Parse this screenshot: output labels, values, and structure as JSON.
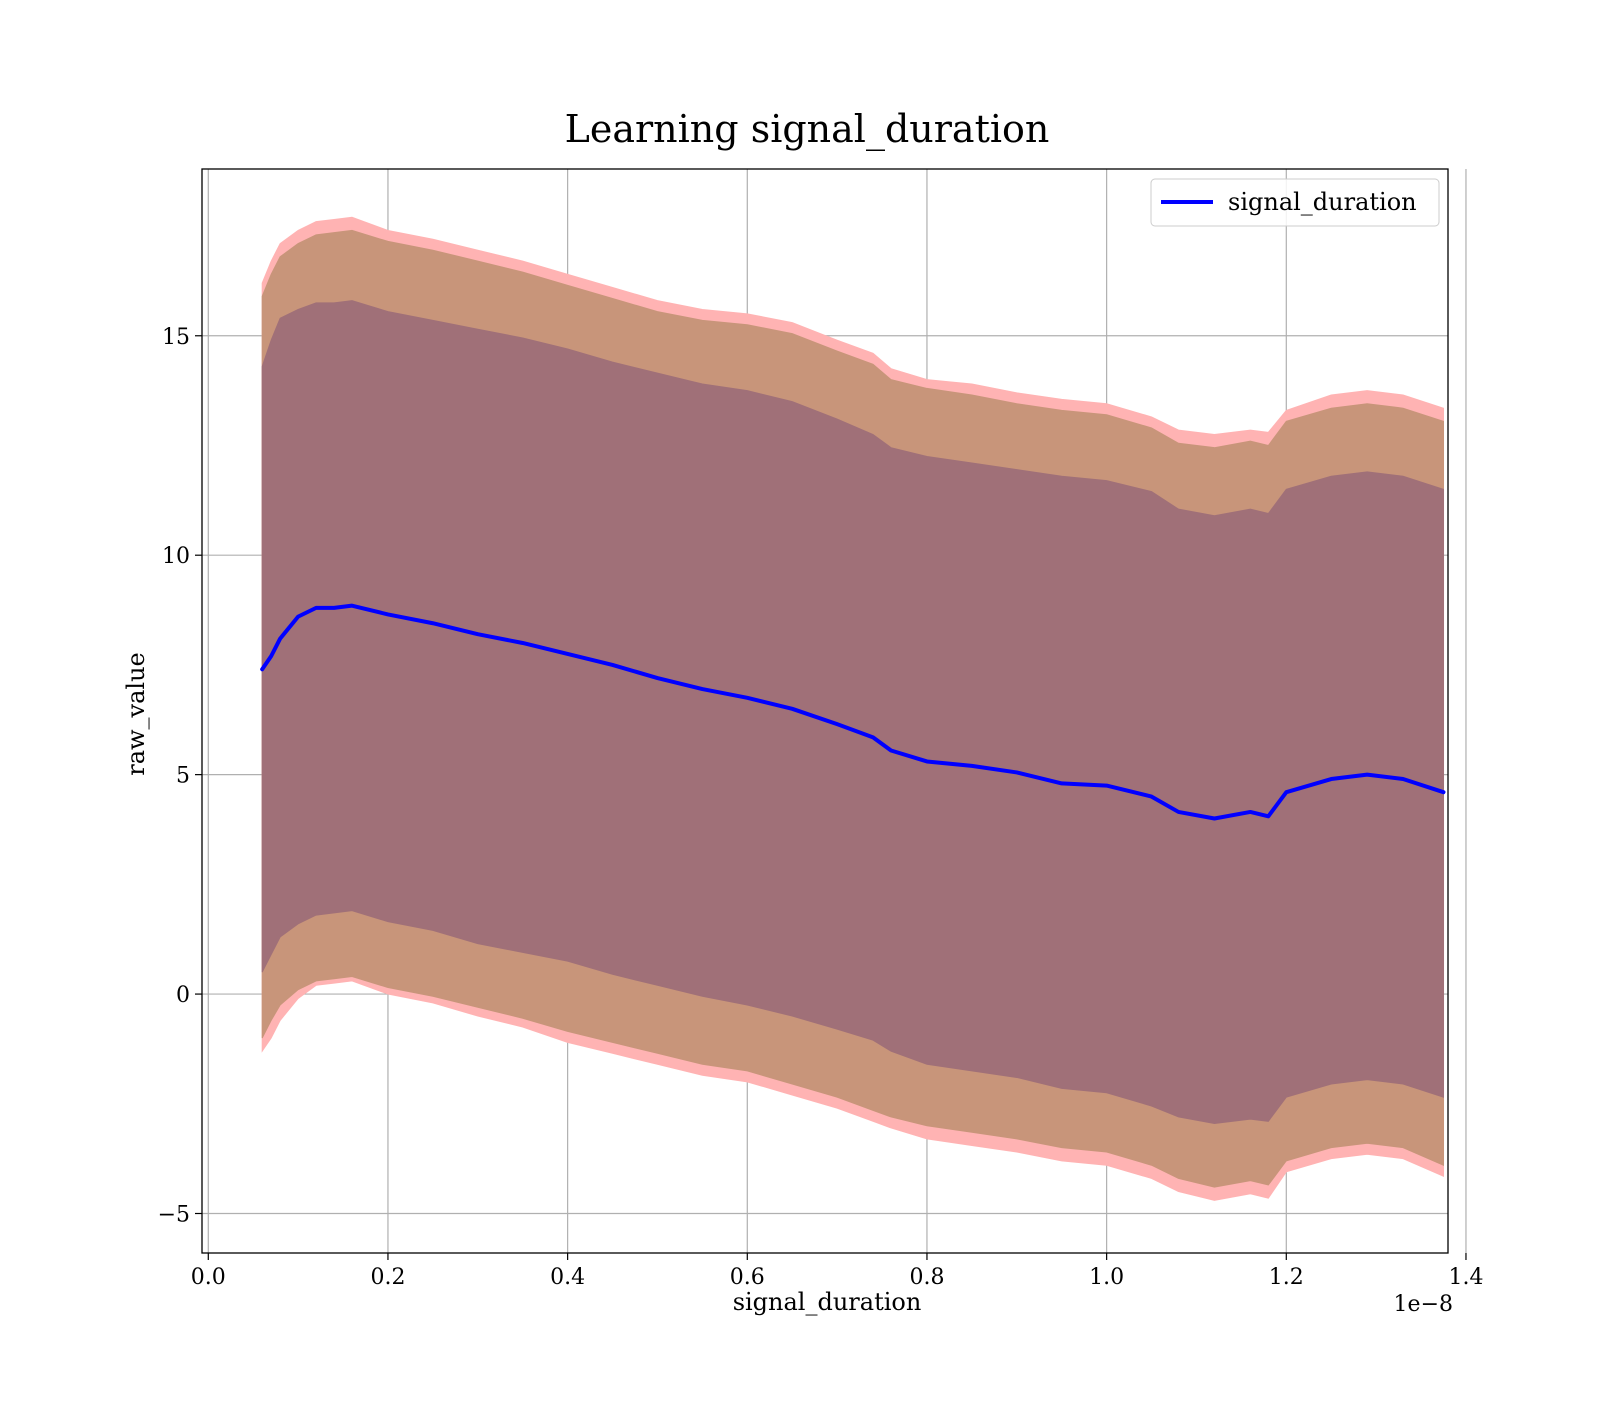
{
  "chart_data": {
    "type": "area",
    "title": "Learning signal_duration",
    "xlabel": "signal_duration",
    "ylabel": "raw_value",
    "x_offset_label": "1e−8",
    "xlim": [
      -0.007,
      1.38
    ],
    "ylim": [
      -5.9,
      18.8
    ],
    "x_ticks": [
      0.0,
      0.2,
      0.4,
      0.6,
      0.8,
      1.0,
      1.2,
      1.4
    ],
    "x_tick_labels": [
      "0.0",
      "0.2",
      "0.4",
      "0.6",
      "0.8",
      "1.0",
      "1.2",
      "1.4"
    ],
    "y_ticks": [
      -5,
      0,
      5,
      10,
      15
    ],
    "y_tick_labels": [
      "−5",
      "0",
      "5",
      "10",
      "15"
    ],
    "grid": true,
    "legend_position": "upper right",
    "colors": {
      "line": "#0000ff",
      "outer_band": "#ffb3b3",
      "middle_band": "#c8957a",
      "inner_band": "#a07078"
    },
    "series": [
      {
        "name": "signal_duration",
        "x": [
          0.06,
          0.07,
          0.08,
          0.1,
          0.12,
          0.14,
          0.16,
          0.2,
          0.25,
          0.3,
          0.35,
          0.4,
          0.45,
          0.5,
          0.55,
          0.6,
          0.65,
          0.7,
          0.74,
          0.76,
          0.8,
          0.85,
          0.9,
          0.95,
          1.0,
          1.05,
          1.08,
          1.12,
          1.16,
          1.18,
          1.2,
          1.25,
          1.29,
          1.33,
          1.375
        ],
        "values": [
          7.4,
          7.7,
          8.1,
          8.6,
          8.8,
          8.8,
          8.85,
          8.65,
          8.45,
          8.2,
          8.0,
          7.75,
          7.5,
          7.2,
          6.95,
          6.75,
          6.5,
          6.15,
          5.85,
          5.55,
          5.3,
          5.2,
          5.05,
          4.8,
          4.75,
          4.5,
          4.15,
          4.0,
          4.15,
          4.05,
          4.6,
          4.9,
          5.0,
          4.9,
          4.6
        ]
      }
    ],
    "bands": [
      {
        "layer": "outer",
        "lower": [
          -1.3,
          -1.0,
          -0.6,
          -0.1,
          0.2,
          0.25,
          0.3,
          0.0,
          -0.2,
          -0.5,
          -0.75,
          -1.1,
          -1.35,
          -1.6,
          -1.85,
          -2.0,
          -2.3,
          -2.6,
          -2.9,
          -3.05,
          -3.3,
          -3.45,
          -3.6,
          -3.8,
          -3.9,
          -4.2,
          -4.5,
          -4.7,
          -4.55,
          -4.65,
          -4.05,
          -3.75,
          -3.65,
          -3.75,
          -4.15
        ],
        "upper": [
          16.2,
          16.7,
          17.1,
          17.4,
          17.6,
          17.65,
          17.7,
          17.4,
          17.2,
          16.95,
          16.7,
          16.4,
          16.1,
          15.8,
          15.6,
          15.5,
          15.3,
          14.9,
          14.6,
          14.25,
          14.0,
          13.9,
          13.7,
          13.55,
          13.45,
          13.15,
          12.85,
          12.75,
          12.85,
          12.8,
          13.3,
          13.65,
          13.75,
          13.65,
          13.35
        ]
      },
      {
        "layer": "middle",
        "lower": [
          -1.0,
          -0.6,
          -0.25,
          0.1,
          0.3,
          0.35,
          0.4,
          0.15,
          -0.05,
          -0.3,
          -0.55,
          -0.85,
          -1.1,
          -1.35,
          -1.6,
          -1.75,
          -2.05,
          -2.35,
          -2.65,
          -2.8,
          -3.0,
          -3.15,
          -3.3,
          -3.5,
          -3.6,
          -3.9,
          -4.2,
          -4.4,
          -4.25,
          -4.35,
          -3.8,
          -3.5,
          -3.4,
          -3.5,
          -3.9
        ],
        "upper": [
          15.9,
          16.4,
          16.8,
          17.1,
          17.3,
          17.35,
          17.4,
          17.15,
          16.95,
          16.7,
          16.45,
          16.15,
          15.85,
          15.55,
          15.35,
          15.25,
          15.05,
          14.65,
          14.35,
          14.0,
          13.8,
          13.65,
          13.45,
          13.3,
          13.2,
          12.9,
          12.55,
          12.45,
          12.6,
          12.5,
          13.05,
          13.35,
          13.45,
          13.35,
          13.05
        ]
      },
      {
        "layer": "inner",
        "lower": [
          0.5,
          0.9,
          1.3,
          1.6,
          1.8,
          1.85,
          1.9,
          1.65,
          1.45,
          1.15,
          0.95,
          0.75,
          0.45,
          0.2,
          -0.05,
          -0.25,
          -0.5,
          -0.8,
          -1.05,
          -1.3,
          -1.6,
          -1.75,
          -1.9,
          -2.15,
          -2.25,
          -2.55,
          -2.8,
          -2.95,
          -2.85,
          -2.9,
          -2.35,
          -2.05,
          -1.95,
          -2.05,
          -2.35
        ],
        "upper": [
          14.3,
          14.9,
          15.4,
          15.6,
          15.75,
          15.75,
          15.8,
          15.55,
          15.35,
          15.15,
          14.95,
          14.7,
          14.4,
          14.15,
          13.9,
          13.75,
          13.5,
          13.1,
          12.75,
          12.45,
          12.25,
          12.1,
          11.95,
          11.8,
          11.7,
          11.45,
          11.05,
          10.9,
          11.05,
          10.95,
          11.5,
          11.8,
          11.9,
          11.8,
          11.5
        ]
      }
    ]
  }
}
